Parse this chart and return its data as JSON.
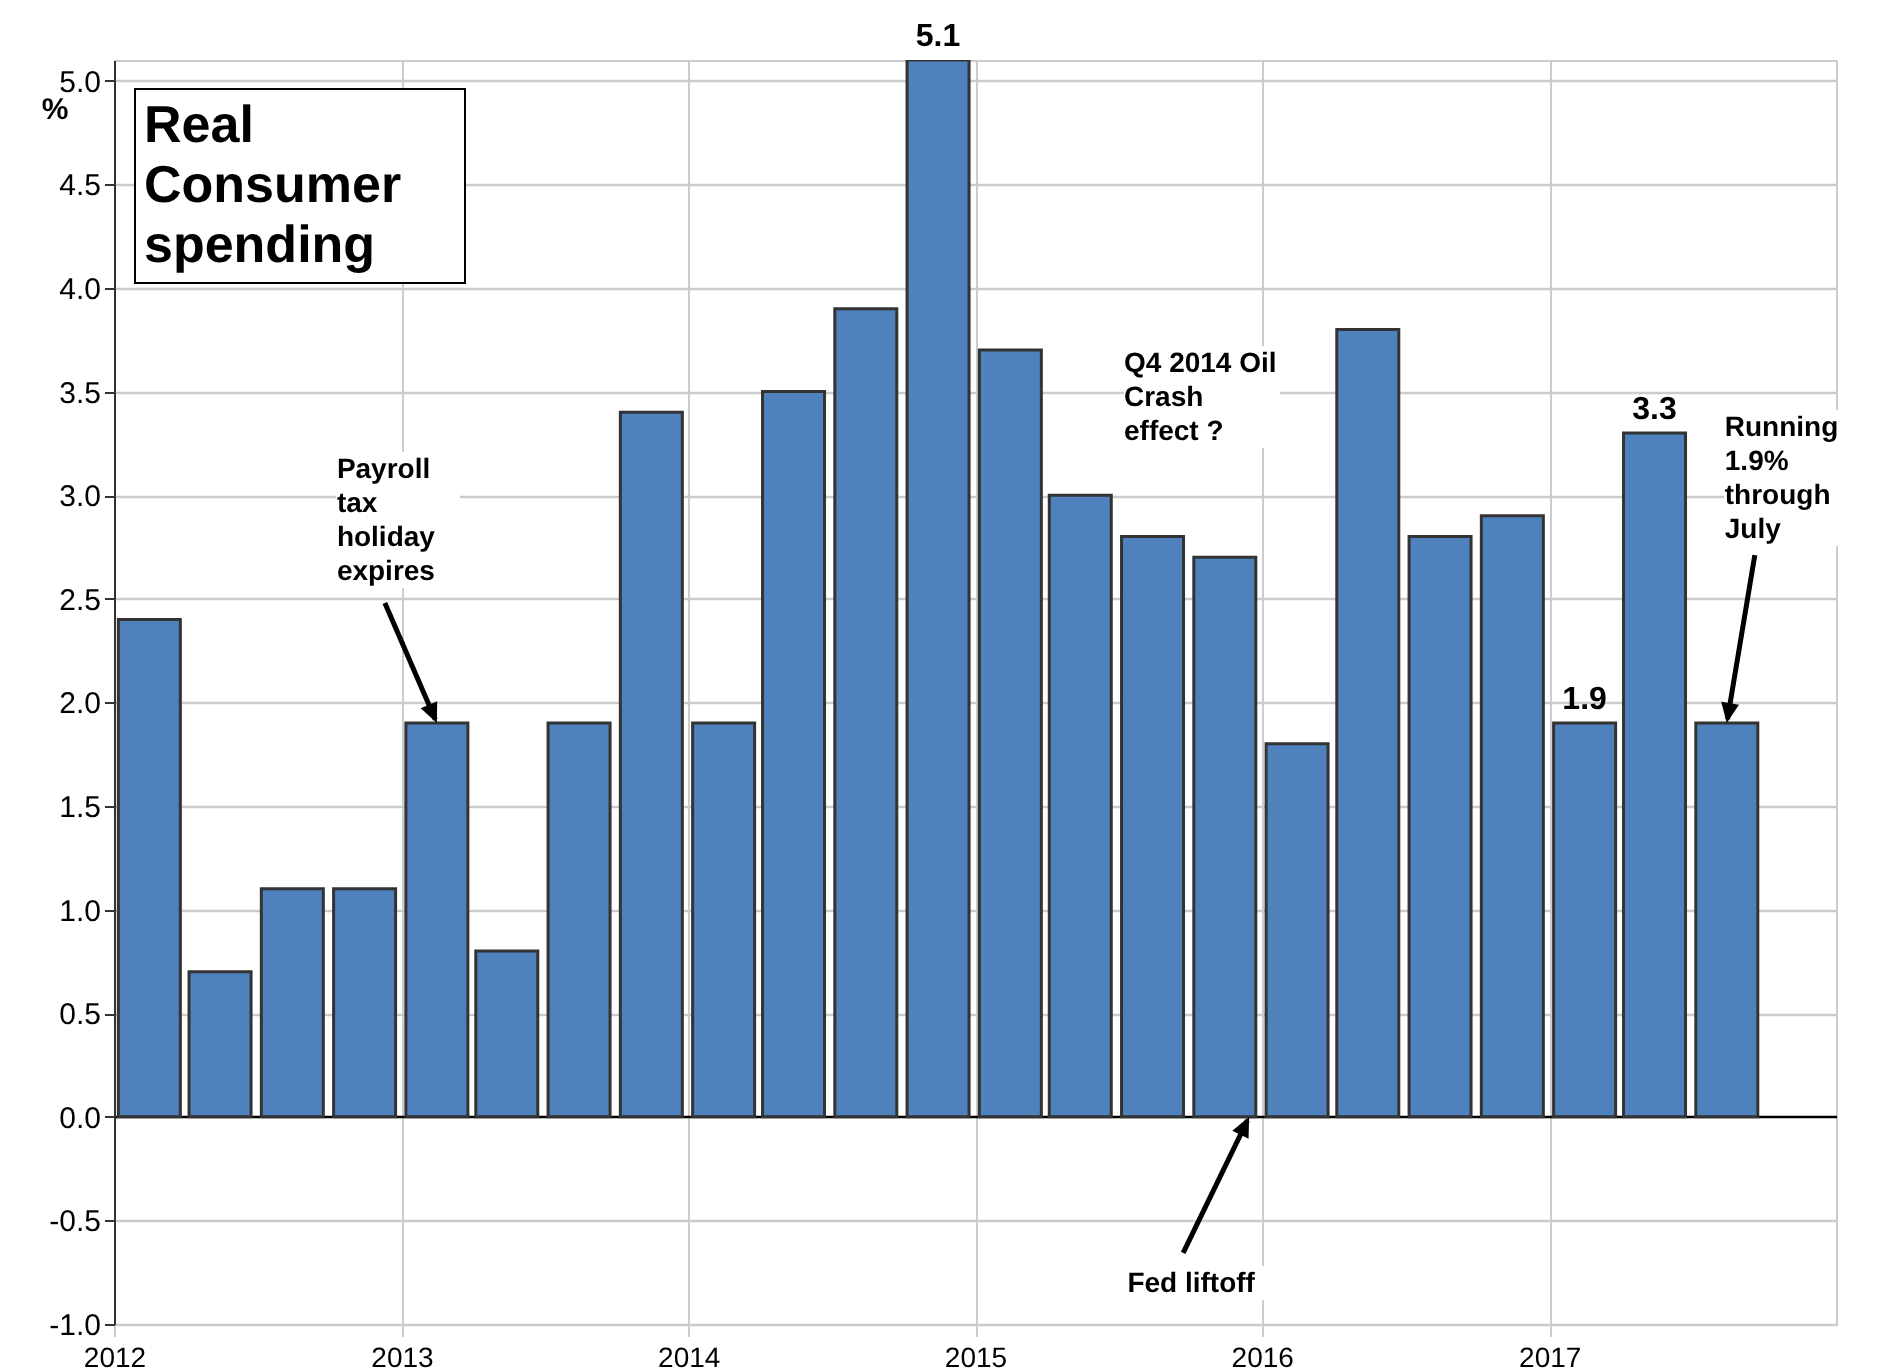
{
  "chart_data": {
    "type": "bar",
    "title": "Real Consumer spending",
    "ylabel": "%",
    "x": [
      "2012-02-15",
      "2012-05-15",
      "2012-08-15",
      "2012-11-15",
      "2013-02-15",
      "2013-05-15",
      "2013-08-15",
      "2013-11-15",
      "2014-02-15",
      "2014-05-15",
      "2014-08-15",
      "2014-11-15",
      "2015-02-15",
      "2015-05-15",
      "2015-08-15",
      "2015-11-15",
      "2016-02-15",
      "2016-05-15",
      "2016-08-15",
      "2016-11-15",
      "2017-02-15",
      "2017-05-15",
      "2017-08-15"
    ],
    "values": [
      2.4,
      0.7,
      1.1,
      1.1,
      1.9,
      0.8,
      1.9,
      3.4,
      1.9,
      3.5,
      3.9,
      5.1,
      3.7,
      3.0,
      2.8,
      2.7,
      1.8,
      3.8,
      2.8,
      2.9,
      1.9,
      3.3,
      1.9
    ],
    "value_labels": [
      null,
      null,
      null,
      null,
      null,
      null,
      null,
      null,
      null,
      null,
      null,
      "5.1",
      null,
      null,
      null,
      null,
      null,
      null,
      null,
      null,
      "1.9",
      "3.3",
      null
    ],
    "color": "#4f81bd",
    "xlim": [
      "2012",
      "2018"
    ],
    "xticks": [
      "2012",
      "2013",
      "2014",
      "2015",
      "2016",
      "2017"
    ],
    "ylim": [
      -1,
      5.1
    ],
    "yticks": [
      {
        "value": -1,
        "label": "-1.0"
      },
      {
        "value": -0.5,
        "label": "-0.5"
      },
      {
        "value": 0,
        "label": "0.0"
      },
      {
        "value": 0.5,
        "label": "0.5"
      },
      {
        "value": 1,
        "label": "1.0"
      },
      {
        "value": 1.5,
        "label": "1.5"
      },
      {
        "value": 2,
        "label": "2.0"
      },
      {
        "value": 2.5,
        "label": "2.5"
      },
      {
        "value": 3,
        "label": "3.0"
      },
      {
        "value": 3.5,
        "label": "3.5"
      },
      {
        "value": 4,
        "label": "4.0"
      },
      {
        "value": 4.5,
        "label": "4.5"
      },
      {
        "value": 5,
        "label": "5.0"
      }
    ],
    "grid": true,
    "annotations": [
      {
        "text": "Payroll tax holiday expires",
        "x": "2013-02-15",
        "y": 1.9
      },
      "Q4 2014 Oil Crash effect ?",
      {
        "text": "Fed liftoff",
        "x": "2015-12-16",
        "y": 0
      },
      {
        "text": "Running 1.9% through July",
        "x": "2017-08-15",
        "y": 1.9
      }
    ]
  }
}
